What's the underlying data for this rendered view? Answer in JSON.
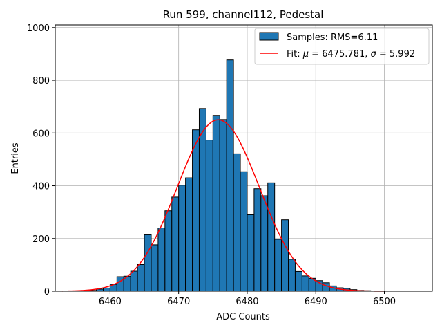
{
  "chart_data": {
    "type": "bar",
    "title": "Run 599, channel112, Pedestal",
    "xlabel": "ADC Counts",
    "ylabel": "Entries",
    "xlim": [
      6452,
      6507
    ],
    "ylim": [
      0,
      1010
    ],
    "xticks": [
      6460,
      6470,
      6480,
      6490,
      6500
    ],
    "yticks": [
      0,
      200,
      400,
      600,
      800,
      1000
    ],
    "grid": true,
    "legend_position": "top-right",
    "histogram": {
      "name": "Samples: RMS=6.11",
      "color": "#1f77b4",
      "bin_width": 1,
      "bin_starts": [
        6453,
        6454,
        6455,
        6456,
        6457,
        6458,
        6459,
        6460,
        6461,
        6462,
        6463,
        6464,
        6465,
        6466,
        6467,
        6468,
        6469,
        6470,
        6471,
        6472,
        6473,
        6474,
        6475,
        6476,
        6477,
        6478,
        6479,
        6480,
        6481,
        6482,
        6483,
        6484,
        6485,
        6486,
        6487,
        6488,
        6489,
        6490,
        6491,
        6492,
        6493,
        6494,
        6495,
        6496,
        6497,
        6498,
        6499,
        6500,
        6501,
        6502,
        6503,
        6504
      ],
      "counts": [
        0,
        1,
        1,
        2,
        3,
        8,
        12,
        26,
        55,
        57,
        76,
        101,
        214,
        176,
        240,
        305,
        357,
        402,
        430,
        612,
        693,
        573,
        667,
        651,
        877,
        521,
        453,
        290,
        389,
        362,
        411,
        197,
        271,
        121,
        75,
        58,
        49,
        40,
        32,
        20,
        13,
        11,
        6,
        3,
        2,
        1,
        1,
        0,
        0,
        0,
        0,
        0
      ]
    },
    "fit": {
      "name": "Fit: μ = 6475.781, σ = 5.992",
      "color": "#ff0000",
      "mu": 6475.781,
      "sigma": 5.992,
      "amplitude": 650,
      "x_range": [
        6453,
        6500
      ]
    }
  },
  "legend": {
    "samples_prefix": "Samples: RMS=6.11",
    "fit_prefix": "Fit: ",
    "mu_symbol": "μ",
    "mu_value": " = 6475.781, ",
    "sigma_symbol": "σ",
    "sigma_value": " = 5.992"
  }
}
